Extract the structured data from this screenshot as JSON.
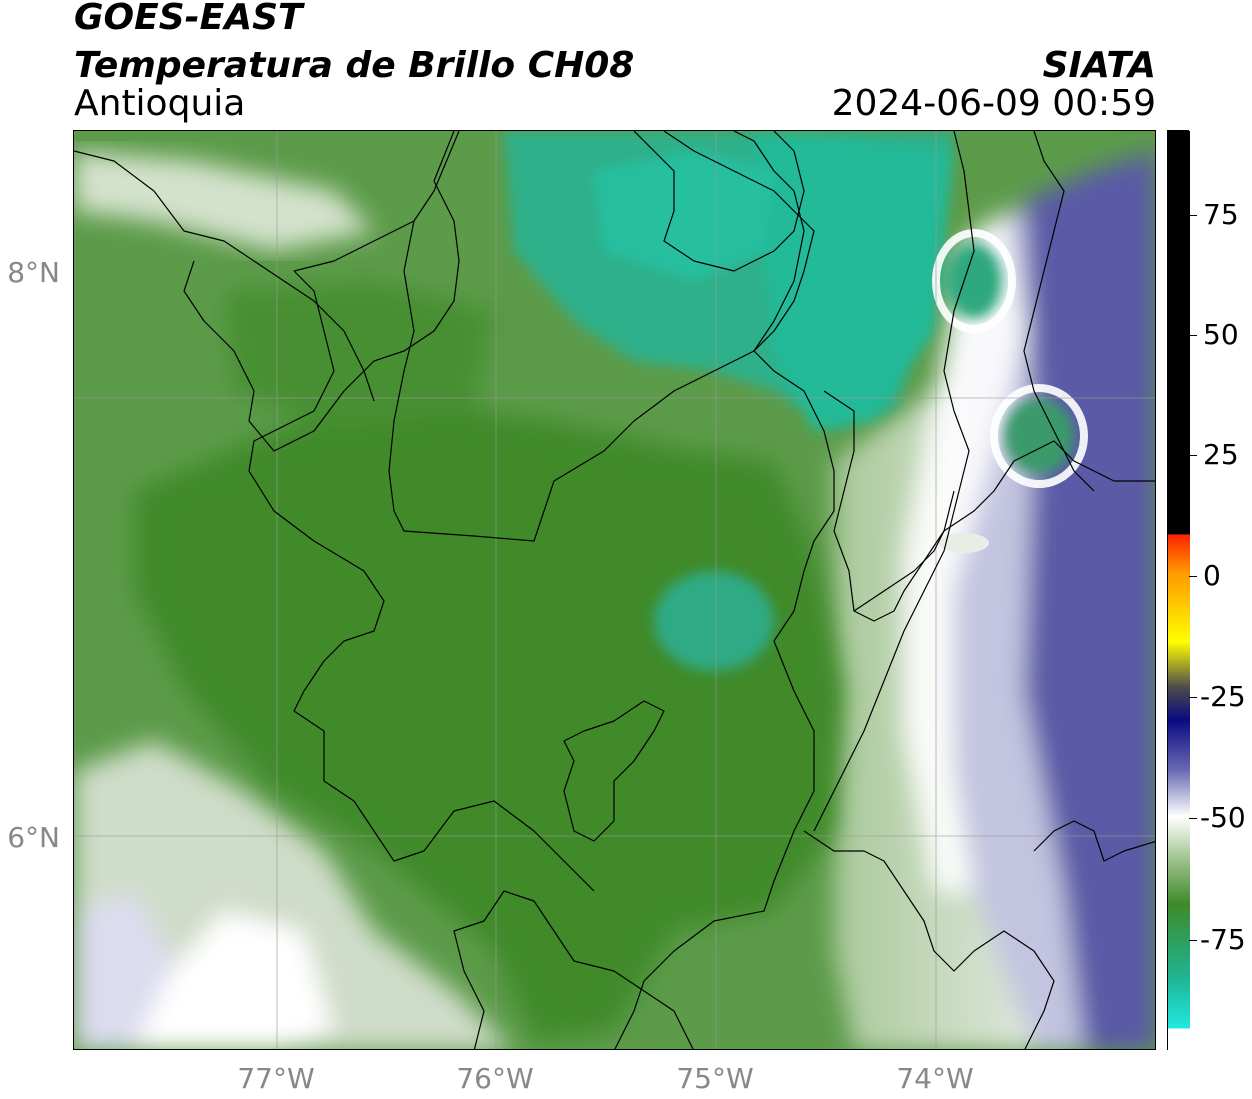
{
  "header": {
    "satellite": "GOES-EAST",
    "product": "Temperatura de Brillo CH08",
    "region": "Antioquia",
    "organization": "SIATA",
    "datetime": "2024-06-09 00:59"
  },
  "map": {
    "lat_labels": [
      "8°N",
      "6°N"
    ],
    "lon_labels": [
      "77°W",
      "76°W",
      "75°W",
      "74°W"
    ],
    "colors": {
      "dark_green": "#3f8a2a",
      "green": "#5c9b4a",
      "light_green": "#a9c99a",
      "pale": "#e6eee4",
      "white": "#ffffff",
      "lavender": "#c3c4e0",
      "blue": "#5a5aa6",
      "teal": "#2fb08a",
      "border": "#000000",
      "grid": "#9a9a9a"
    }
  },
  "colorbar": {
    "tick_labels": [
      "75",
      "50",
      "25",
      "0",
      "-25",
      "-50",
      "-75"
    ],
    "colors": [
      "#000000",
      "#ff2200",
      "#ff9900",
      "#ffff00",
      "#4b4b4b",
      "#0a0a80",
      "#6a6ab4",
      "#ffffff",
      "#8fb87c",
      "#3f8a2a",
      "#1fb492",
      "#20e8e0",
      "#ffffff"
    ]
  }
}
